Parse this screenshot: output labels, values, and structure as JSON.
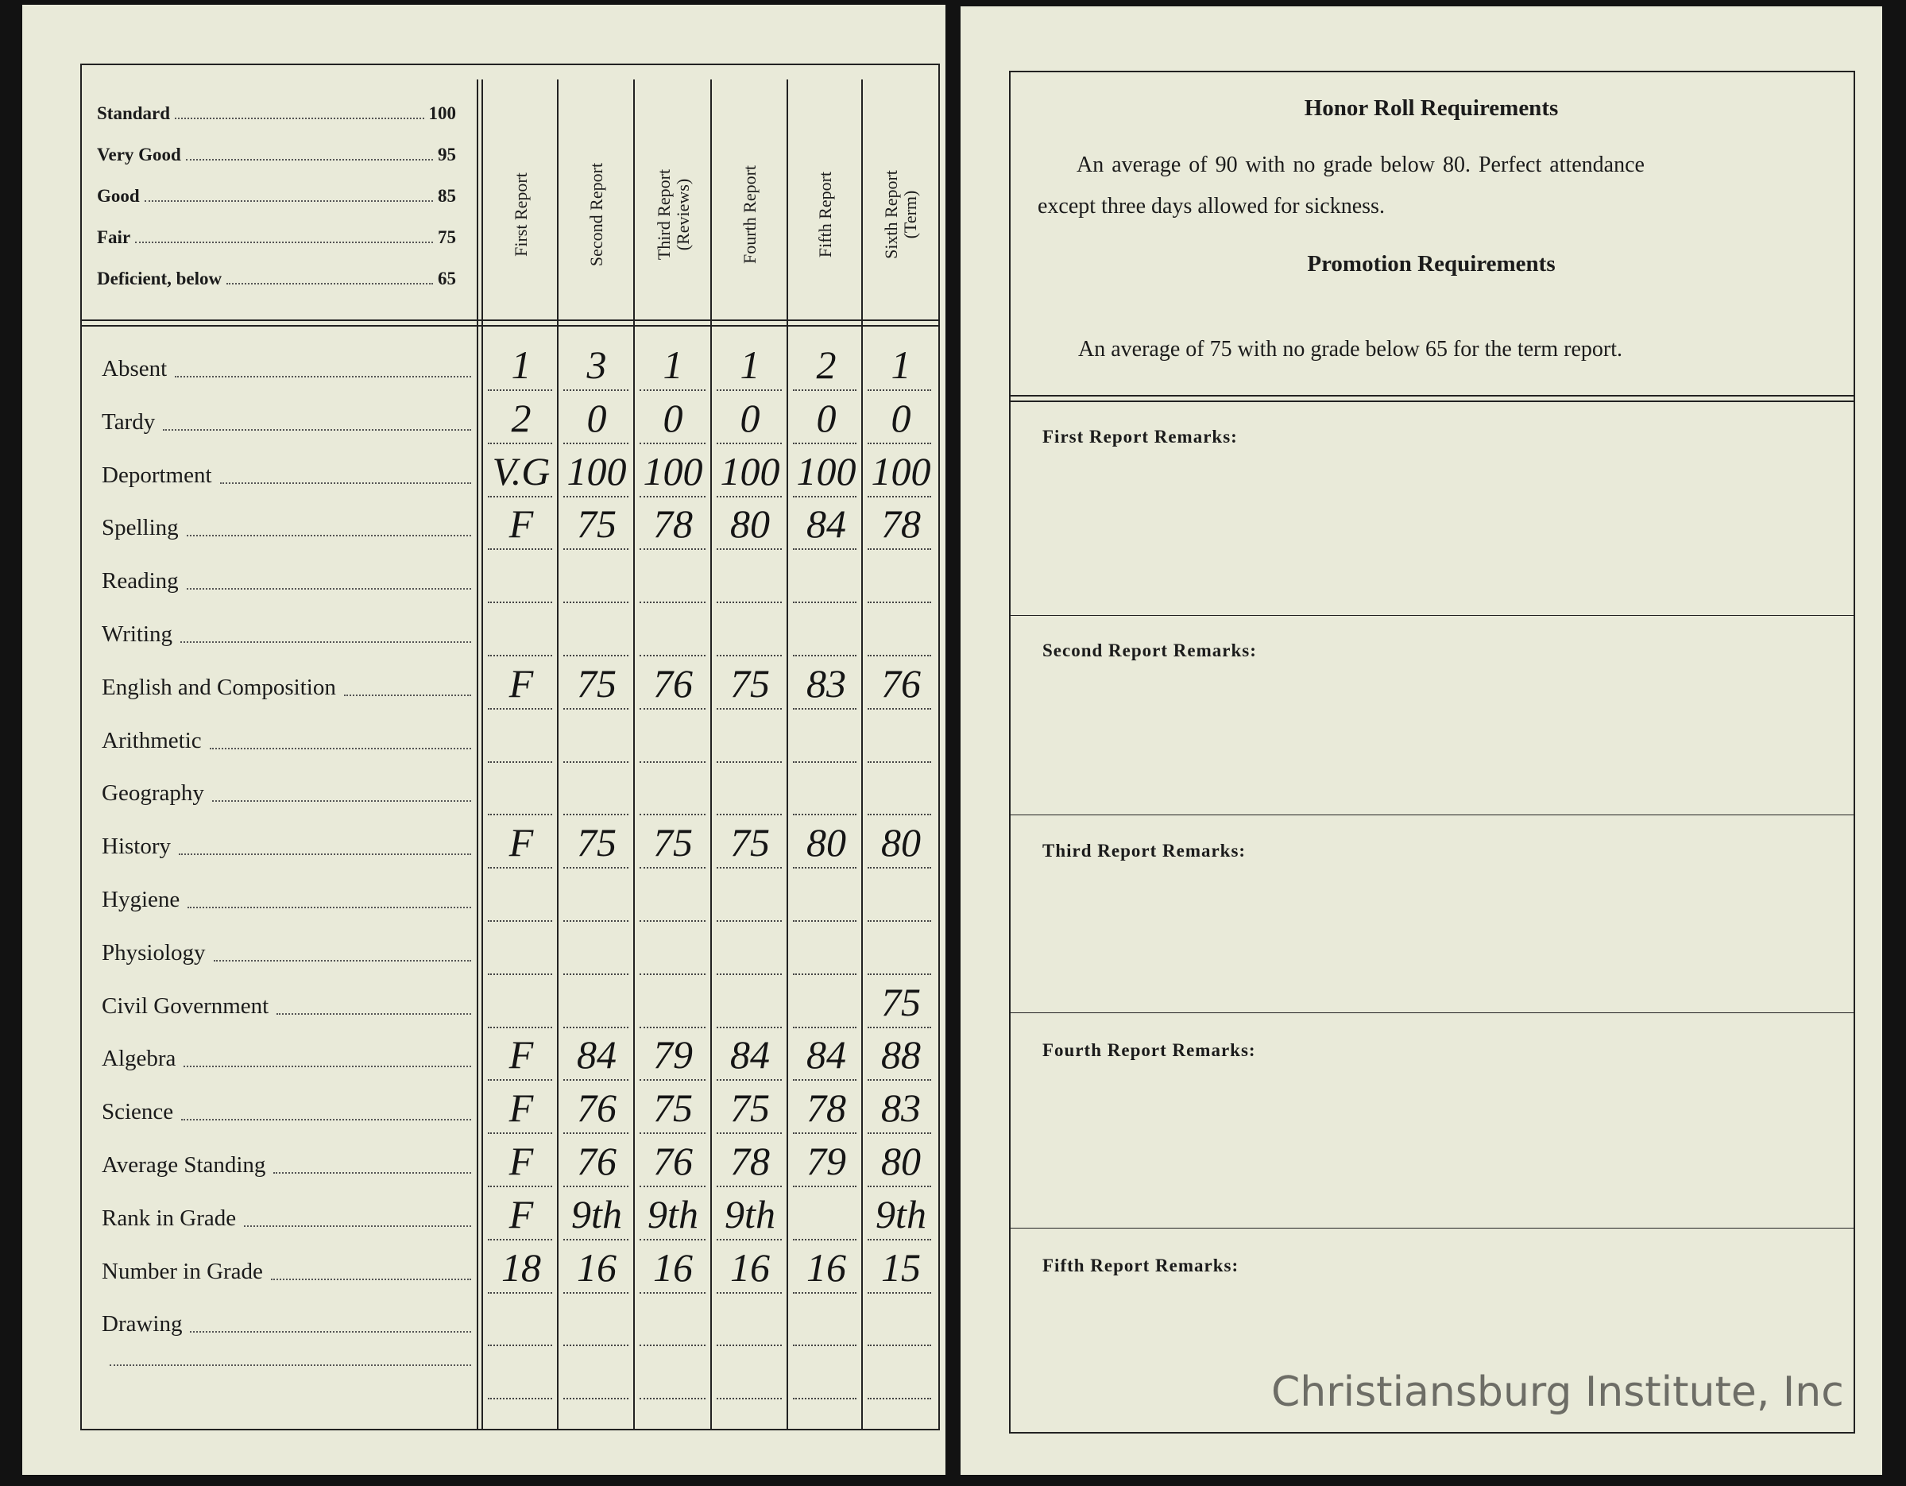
{
  "grading_scale": [
    {
      "label": "Standard",
      "value": "100"
    },
    {
      "label": "Very Good",
      "value": "95"
    },
    {
      "label": "Good",
      "value": "85"
    },
    {
      "label": "Fair",
      "value": "75"
    },
    {
      "label": "Deficient, below",
      "value": "65"
    }
  ],
  "columns": [
    {
      "line1": "First Report",
      "line2": ""
    },
    {
      "line1": "Second Report",
      "line2": ""
    },
    {
      "line1": "Third Report",
      "line2": "(Reviews)"
    },
    {
      "line1": "Fourth Report",
      "line2": ""
    },
    {
      "line1": "Fifth Report",
      "line2": ""
    },
    {
      "line1": "Sixth Report",
      "line2": "(Term)"
    }
  ],
  "rows": [
    {
      "label": "Absent",
      "values": [
        "1",
        "3",
        "1",
        "1",
        "2",
        "1"
      ]
    },
    {
      "label": "Tardy",
      "values": [
        "2",
        "0",
        "0",
        "0",
        "0",
        "0"
      ]
    },
    {
      "label": "Deportment",
      "values": [
        "V.G",
        "100",
        "100",
        "100",
        "100",
        "100"
      ]
    },
    {
      "label": "Spelling",
      "values": [
        "F",
        "75",
        "78",
        "80",
        "84",
        "78"
      ]
    },
    {
      "label": "Reading",
      "values": [
        "",
        "",
        "",
        "",
        "",
        ""
      ]
    },
    {
      "label": "Writing",
      "values": [
        "",
        "",
        "",
        "",
        "",
        ""
      ]
    },
    {
      "label": "English and Composition",
      "values": [
        "F",
        "75",
        "76",
        "75",
        "83",
        "76"
      ]
    },
    {
      "label": "Arithmetic",
      "values": [
        "",
        "",
        "",
        "",
        "",
        ""
      ]
    },
    {
      "label": "Geography",
      "values": [
        "",
        "",
        "",
        "",
        "",
        ""
      ]
    },
    {
      "label": "History",
      "values": [
        "F",
        "75",
        "75",
        "75",
        "80",
        "80"
      ]
    },
    {
      "label": "Hygiene",
      "values": [
        "",
        "",
        "",
        "",
        "",
        ""
      ]
    },
    {
      "label": "Physiology",
      "values": [
        "",
        "",
        "",
        "",
        "",
        ""
      ]
    },
    {
      "label": "Civil Government",
      "values": [
        "",
        "",
        "",
        "",
        "",
        "75"
      ]
    },
    {
      "label": "Algebra",
      "values": [
        "F",
        "84",
        "79",
        "84",
        "84",
        "88"
      ]
    },
    {
      "label": "Science",
      "values": [
        "F",
        "76",
        "75",
        "75",
        "78",
        "83"
      ]
    },
    {
      "label": "Average Standing",
      "values": [
        "F",
        "76",
        "76",
        "78",
        "79",
        "80"
      ]
    },
    {
      "label": "Rank in Grade",
      "values": [
        "F",
        "9th",
        "9th",
        "9th",
        "",
        "9th"
      ]
    },
    {
      "label": "Number in Grade",
      "values": [
        "18",
        "16",
        "16",
        "16",
        "16",
        "15"
      ]
    },
    {
      "label": "Drawing",
      "values": [
        "",
        "",
        "",
        "",
        "",
        ""
      ]
    },
    {
      "label": "",
      "values": [
        "",
        "",
        "",
        "",
        "",
        ""
      ]
    }
  ],
  "right_page": {
    "honor_title": "Honor Roll Requirements",
    "honor_line1": "An average of 90 with no grade below 80.  Perfect attendance",
    "honor_line2": "except three days allowed for sickness.",
    "promotion_title": "Promotion Requirements",
    "promotion_text": "An average of 75 with no grade below 65 for the term report.",
    "remarks": [
      "First Report Remarks:",
      "Second Report Remarks:",
      "Third Report Remarks:",
      "Fourth  Report  Remarks:",
      "Fifth Report Remarks:"
    ]
  },
  "watermark": "Christiansburg Institute, Inc"
}
